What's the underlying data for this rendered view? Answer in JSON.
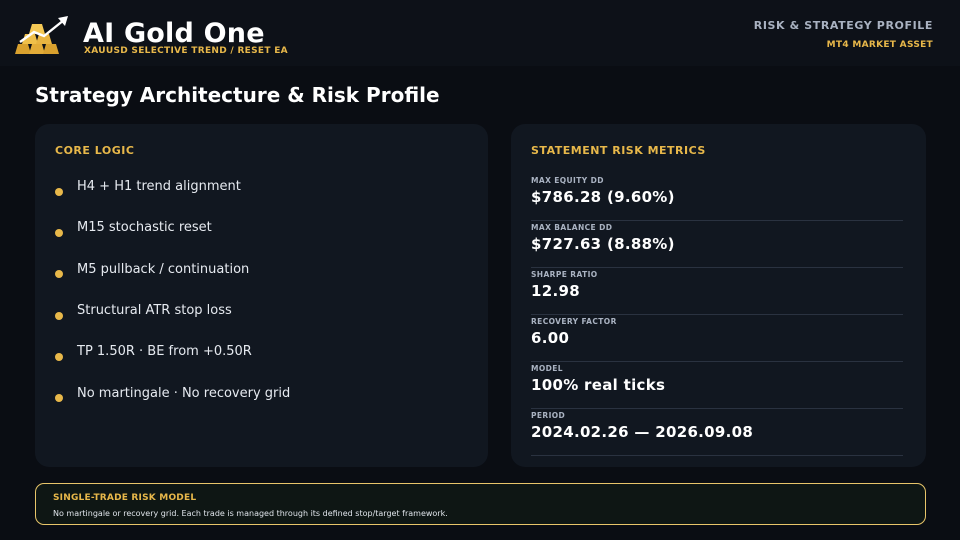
{
  "header": {
    "logo_icon": "gold-bars-rising-arrow-icon",
    "brand_title": "AI Gold One",
    "brand_subtitle": "XAUUSD SELECTIVE TREND / RESET EA",
    "right_title": "RISK & STRATEGY PROFILE",
    "right_subtitle": "MT4 MARKET ASSET"
  },
  "page": {
    "title": "Strategy Architecture & Risk Profile"
  },
  "core_logic": {
    "heading": "CORE LOGIC",
    "items": [
      {
        "text": "H4 + H1 trend alignment"
      },
      {
        "text": "M15 stochastic reset"
      },
      {
        "text": "M5 pullback / continuation"
      },
      {
        "text": "Structural ATR stop loss"
      },
      {
        "text": "TP 1.50R · BE from +0.50R"
      },
      {
        "text": "No martingale · No recovery grid"
      }
    ]
  },
  "risk_metrics": {
    "heading": "STATEMENT RISK METRICS",
    "items": [
      {
        "label": "MAX EQUITY DD",
        "value": "$786.28 (9.60%)"
      },
      {
        "label": "MAX BALANCE DD",
        "value": "$727.63 (8.88%)"
      },
      {
        "label": "SHARPE RATIO",
        "value": "12.98"
      },
      {
        "label": "RECOVERY FACTOR",
        "value": "6.00"
      },
      {
        "label": "MODEL",
        "value": "100% real ticks"
      },
      {
        "label": "PERIOD",
        "value": "2024.02.26 — 2026.09.08"
      }
    ]
  },
  "footer": {
    "title": "SINGLE-TRADE RISK MODEL",
    "text": "No martingale or recovery grid. Each trade is managed through its defined stop/target framework."
  },
  "colors": {
    "background": "#0a0d13",
    "card": "#111720",
    "accent_gold": "#e8b84a",
    "muted_text": "#a9b2c1"
  }
}
